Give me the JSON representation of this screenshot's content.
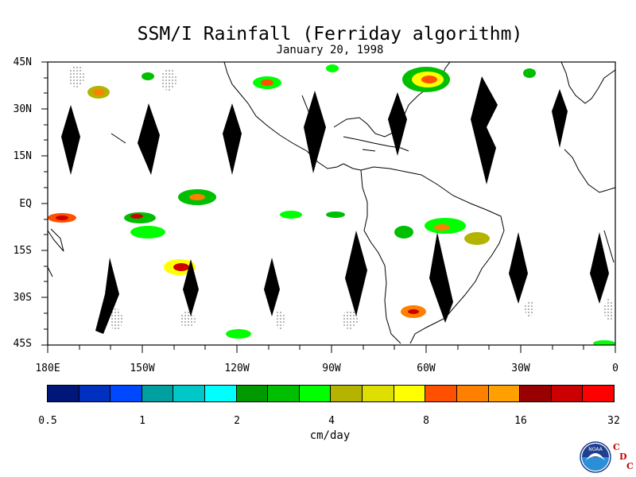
{
  "title": "SSM/I Rainfall (Ferriday algorithm)",
  "subtitle": "January 20, 1998",
  "lat_labels": [
    "45N",
    "30N",
    "15N",
    "EQ",
    "15S",
    "30S",
    "45S"
  ],
  "lat_values": [
    45,
    30,
    15,
    0,
    -15,
    -30,
    -45
  ],
  "lon_labels": [
    "180E",
    "150W",
    "120W",
    "90W",
    "60W",
    "30W",
    "0"
  ],
  "lon_values": [
    -180,
    -150,
    -120,
    -90,
    -60,
    -30,
    0
  ],
  "colorbar": {
    "colors": [
      "#00177a",
      "#0030c0",
      "#0048ff",
      "#00a0a0",
      "#00c8c8",
      "#00ffff",
      "#009900",
      "#00bf00",
      "#00ff00",
      "#b3b300",
      "#dede00",
      "#ffff00",
      "#ff5000",
      "#ff8000",
      "#ffa000",
      "#990000",
      "#cc0000",
      "#ff0000"
    ],
    "tick_labels": [
      "0.5",
      "1",
      "2",
      "4",
      "8",
      "16",
      "32"
    ],
    "units": "cm/day"
  },
  "logo": {
    "icon": "noaa-logo-icon",
    "text": "NOAA",
    "cdc_letters": [
      "C",
      "D",
      "C"
    ]
  },
  "map_extent": {
    "lon": [
      -180,
      0
    ],
    "lat": [
      -45,
      45
    ]
  }
}
